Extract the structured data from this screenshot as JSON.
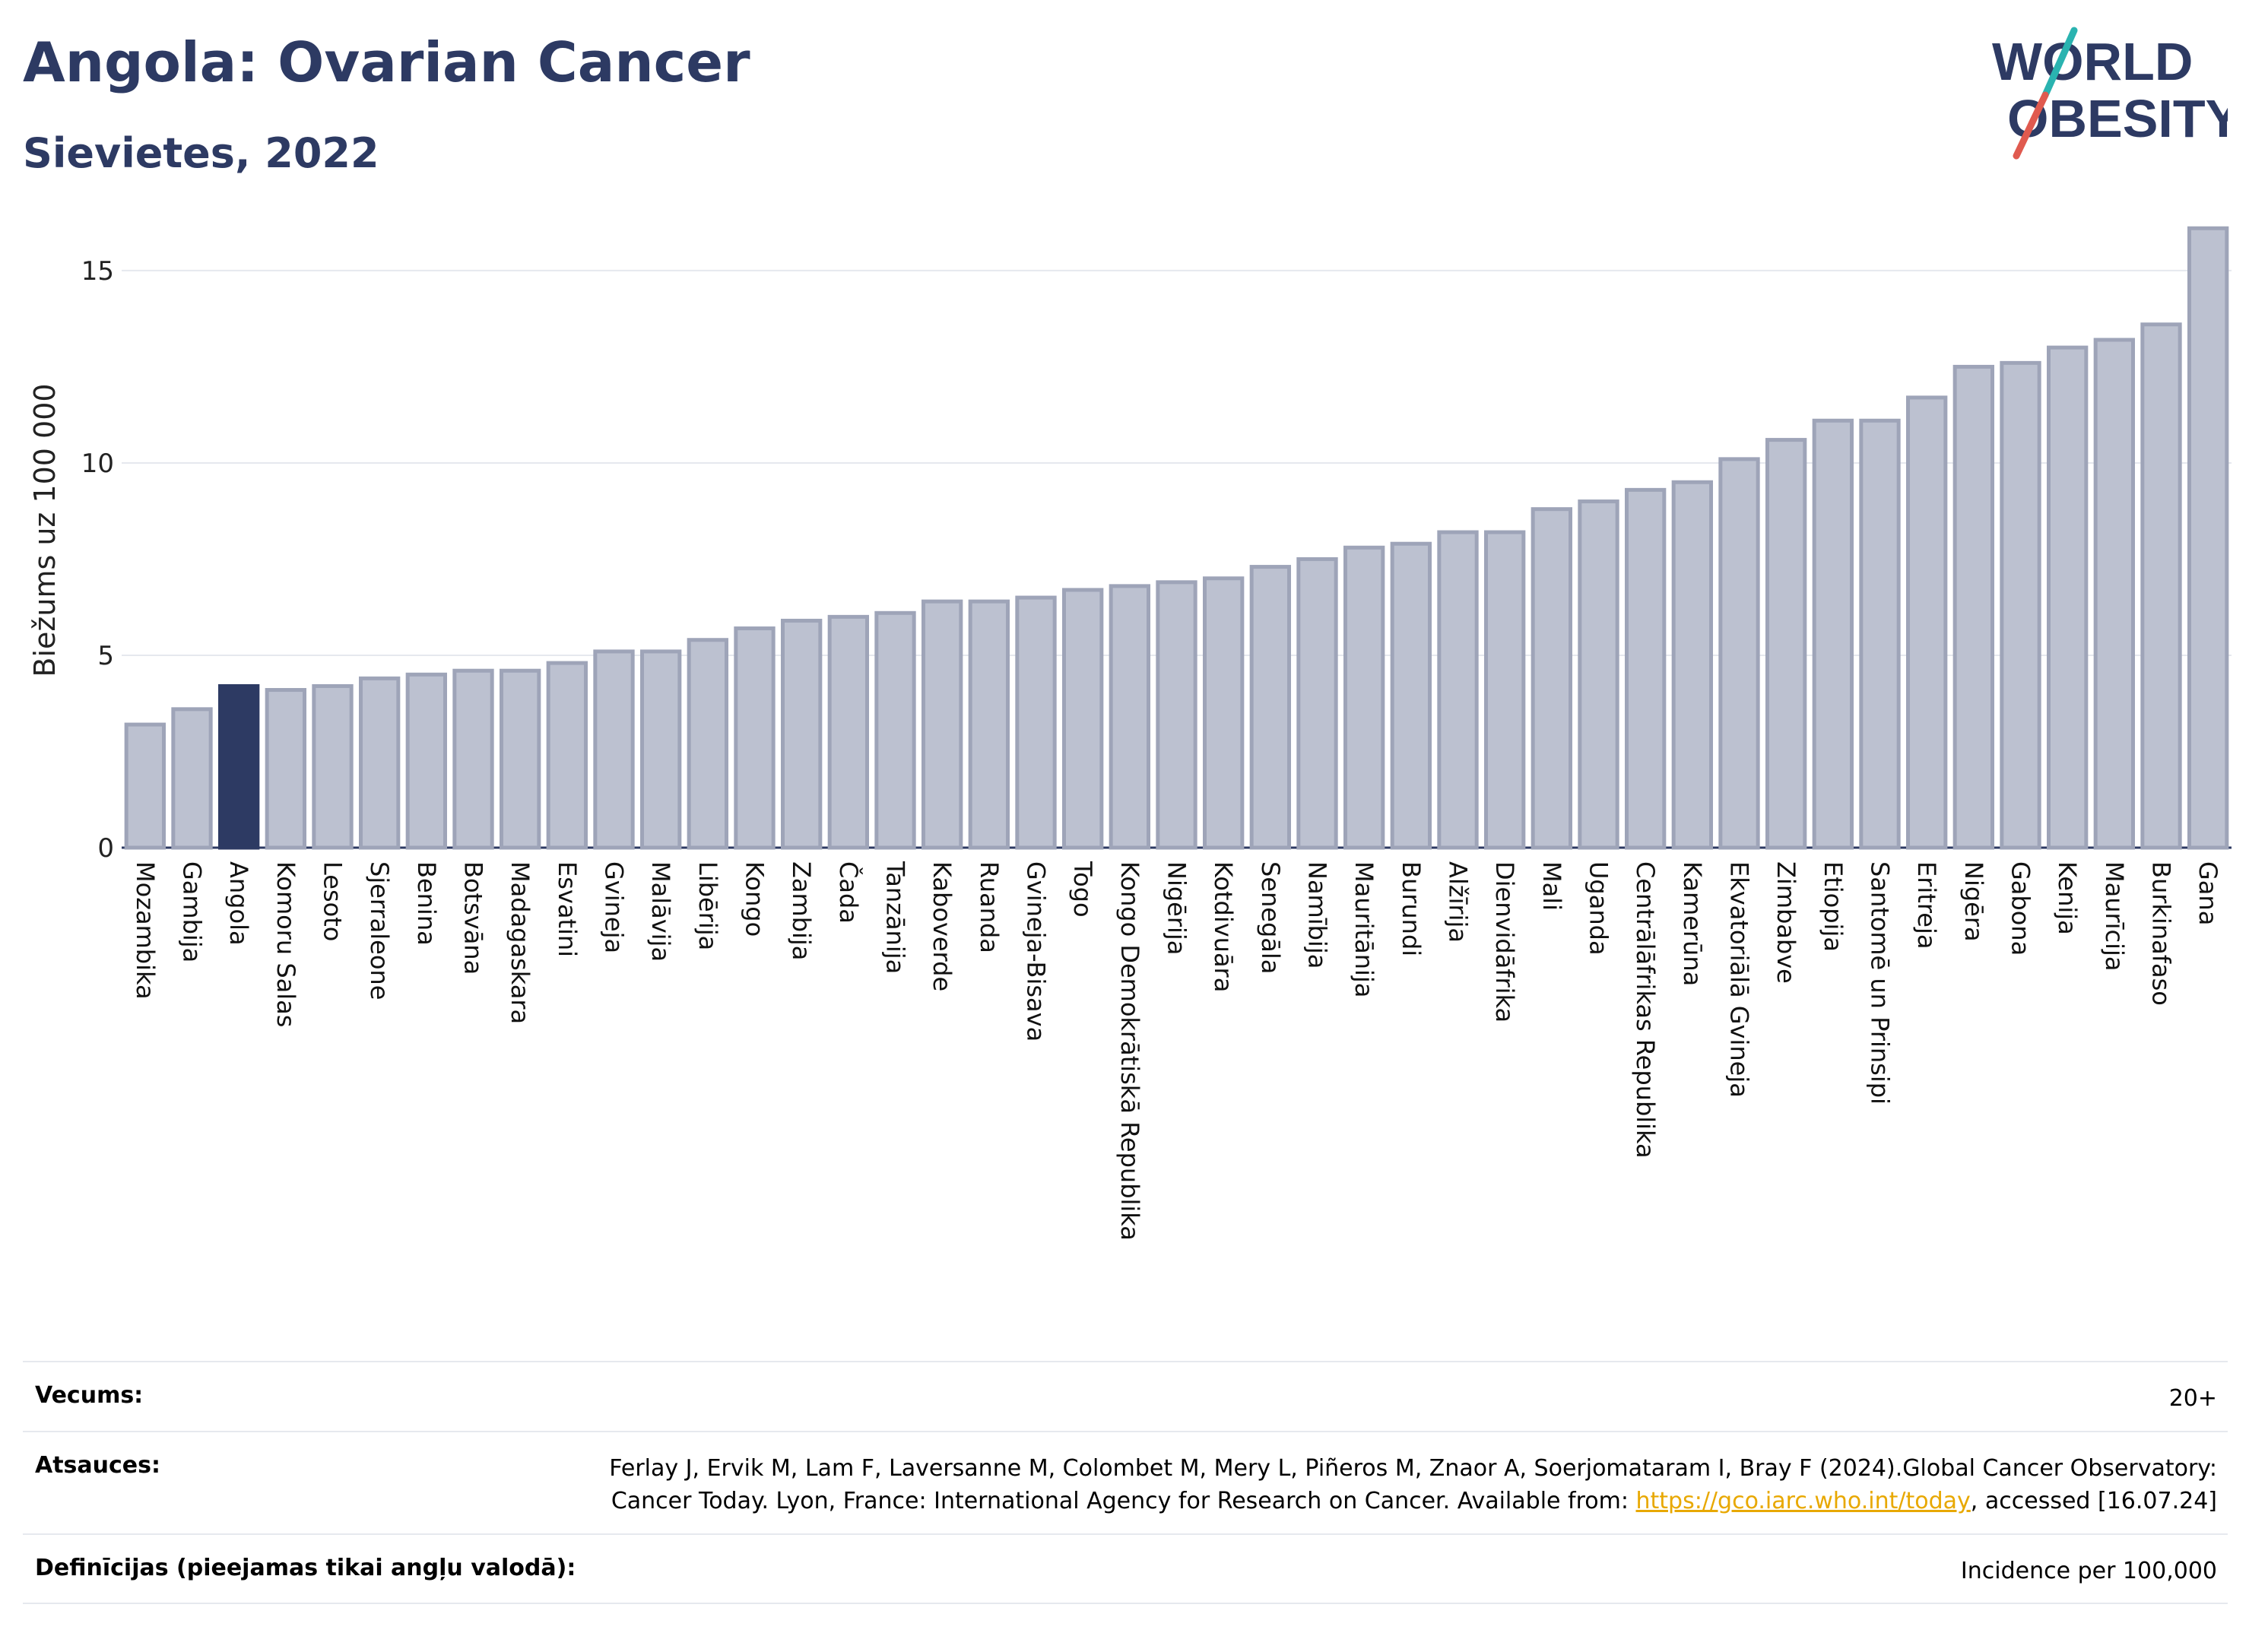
{
  "header": {
    "title": "Angola: Ovarian Cancer",
    "subtitle": "Sievietes, 2022"
  },
  "logo": {
    "line1": "WORLD",
    "line2": "OBESITY",
    "accent_teal": "#2ab3b0",
    "accent_red": "#e05a4f"
  },
  "colors": {
    "highlight": "#2d3a63",
    "bar": "#bcc1d0",
    "bar_stroke": "#9ea4b8",
    "title": "#2d3a63"
  },
  "chart_data": {
    "type": "bar",
    "ylabel": "Biežums uz 100 000",
    "ylim": [
      0,
      16.5
    ],
    "yticks": [
      0,
      5,
      10,
      15
    ],
    "grid": true,
    "highlight": "Angola",
    "categories": [
      "Mozambika",
      "Gambija",
      "Angola",
      "Komoru Salas",
      "Lesoto",
      "Sjerraleone",
      "Benina",
      "Botsvāna",
      "Madagaskara",
      "Esvatini",
      "Gvineja",
      "Malāvija",
      "Libērija",
      "Kongo",
      "Zambija",
      "Čada",
      "Tanzānija",
      "Kaboverde",
      "Ruanda",
      "Gvineja-Bisava",
      "Togo",
      "Kongo Demokrātiskā Republika",
      "Nigērija",
      "Kotdivuāra",
      "Senegāla",
      "Namībija",
      "Mauritānija",
      "Burundi",
      "Alžīrija",
      "Dienvidāfrika",
      "Mali",
      "Uganda",
      "Centrālāfrikas Republika",
      "Kamerūna",
      "Ekvatoriālā Gvineja",
      "Zimbabve",
      "Etiopija",
      "Santomē un Prinsipi",
      "Eritreja",
      "Nigēra",
      "Gabona",
      "Kenija",
      "Maurīcija",
      "Burkinafaso",
      "Gana"
    ],
    "values": [
      3.2,
      3.6,
      4.2,
      4.1,
      4.2,
      4.4,
      4.5,
      4.6,
      4.6,
      4.8,
      5.1,
      5.1,
      5.4,
      5.7,
      5.9,
      6.0,
      6.1,
      6.4,
      6.4,
      6.5,
      6.7,
      6.8,
      6.9,
      7.0,
      7.3,
      7.5,
      7.8,
      7.9,
      8.2,
      8.2,
      8.8,
      9.0,
      9.3,
      9.5,
      10.1,
      10.6,
      11.1,
      11.1,
      11.7,
      12.5,
      12.6,
      13.0,
      13.2,
      13.6,
      16.1
    ]
  },
  "info": {
    "age_label": "Vecums:",
    "age_value": "20+",
    "sources_label": "Atsauces:",
    "sources_text": "Ferlay J, Ervik M, Lam F, Laversanne M, Colombet M, Mery L, Piñeros M, Znaor A, Soerjomataram I, Bray F (2024).Global Cancer Observatory: Cancer Today. Lyon, France: International Agency for Research on Cancer. Available from:",
    "sources_link": "https://gco.iarc.who.int/today",
    "sources_suffix": ", accessed [16.07.24]",
    "definitions_label": "Definīcijas (pieejamas tikai angļu valodā):",
    "definitions_value": "Incidence per 100,000"
  }
}
